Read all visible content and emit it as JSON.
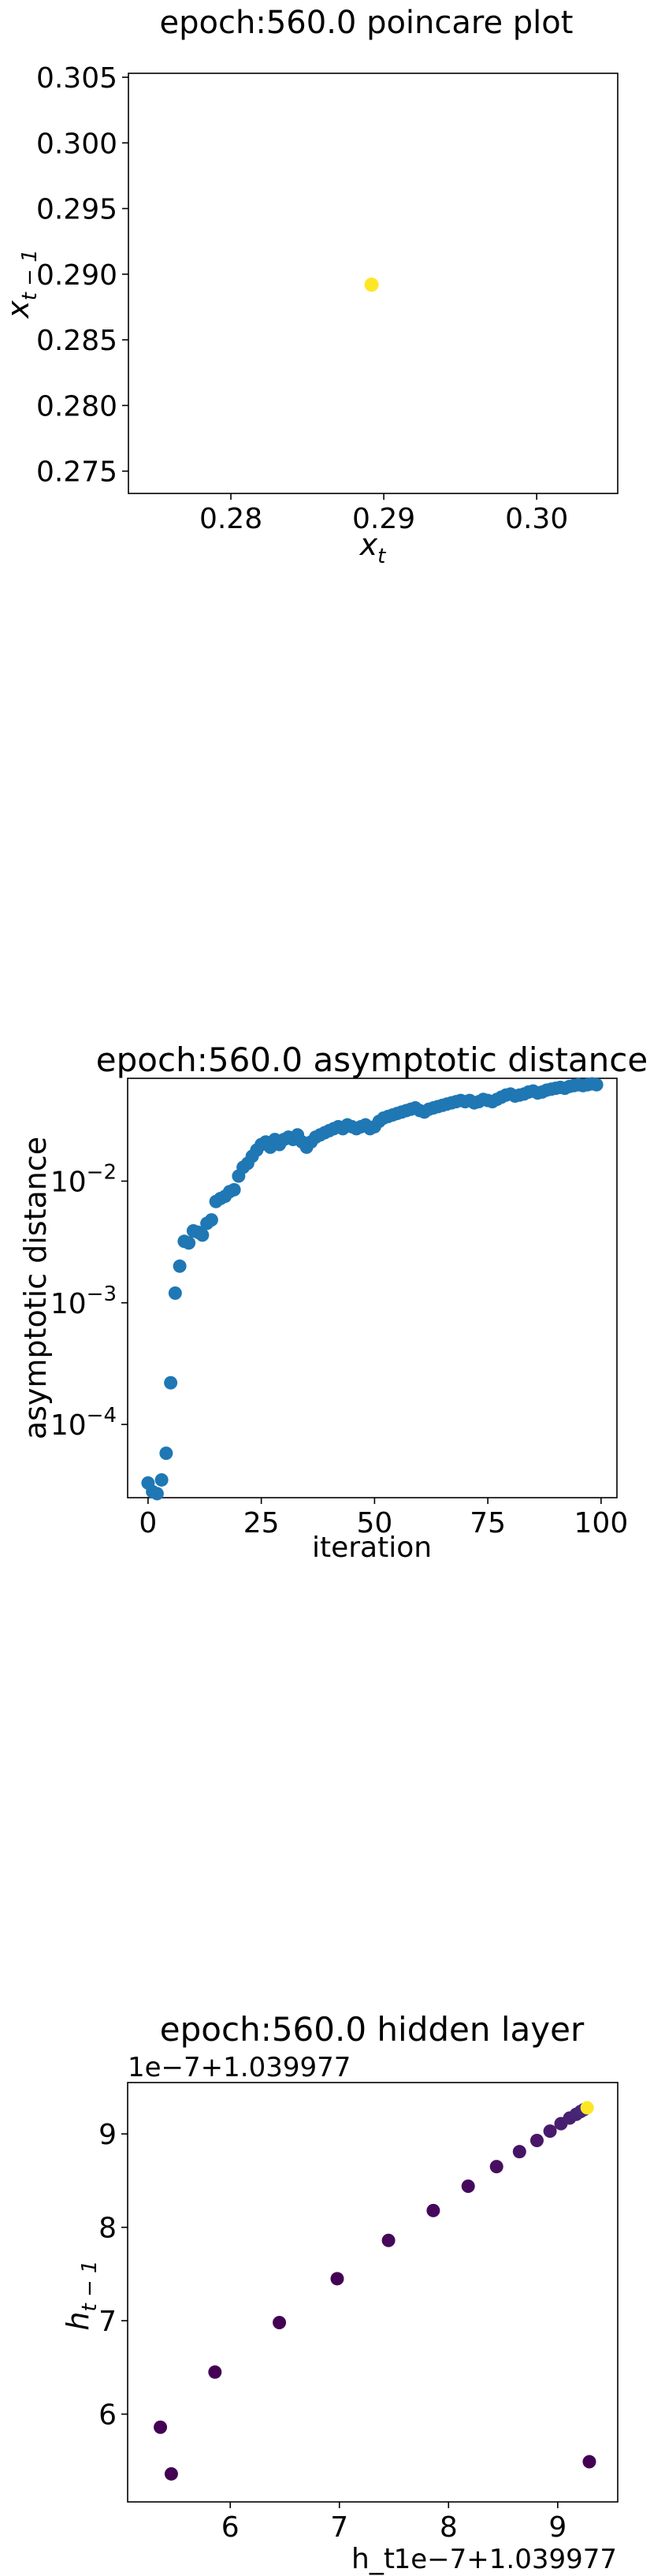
{
  "chart_data": [
    {
      "type": "scatter",
      "title": "epoch:560.0 poincare plot",
      "xlabel": "x_t",
      "ylabel": "x_{t-1}",
      "xlim": [
        0.2733,
        0.3053
      ],
      "ylim": [
        0.2733,
        0.3053
      ],
      "xticks": [
        0.28,
        0.29,
        0.3
      ],
      "xtick_labels": [
        "0.28",
        "0.29",
        "0.30"
      ],
      "yticks": [
        0.275,
        0.28,
        0.285,
        0.29,
        0.295,
        0.3,
        0.305
      ],
      "ytick_labels": [
        "0.275",
        "0.280",
        "0.285",
        "0.290",
        "0.295",
        "0.300",
        "0.305"
      ],
      "grid": false,
      "points": [
        {
          "x": 0.2892,
          "y": 0.2892,
          "color": "#fde725"
        }
      ]
    },
    {
      "type": "scatter",
      "title": "epoch:560.0 asymptotic distance",
      "xlabel": "iteration",
      "ylabel": "asymptotic distance",
      "xlim": [
        -4.5,
        103.5
      ],
      "ylim": [
        2.5e-05,
        0.07
      ],
      "yscale": "log",
      "xticks": [
        0,
        25,
        50,
        75,
        100
      ],
      "xtick_labels": [
        "0",
        "25",
        "50",
        "75",
        "100"
      ],
      "yticks": [
        0.0001,
        0.001,
        0.01
      ],
      "ytick_labels": [
        "10^-4",
        "10^-3",
        "10^-2"
      ],
      "grid": false,
      "color": "#1f77b4",
      "series": [
        {
          "x": [
            0,
            1,
            2,
            3,
            4,
            5,
            6,
            7,
            8,
            9,
            10,
            11,
            12,
            13,
            14,
            15,
            16,
            17,
            18,
            19,
            20,
            21,
            22,
            23,
            24,
            25,
            26,
            27,
            28,
            29,
            30,
            31,
            32,
            33,
            34,
            35,
            36,
            37,
            38,
            39,
            40,
            41,
            42,
            43,
            44,
            45,
            46,
            47,
            48,
            49,
            50,
            51,
            52,
            53,
            54,
            55,
            56,
            57,
            58,
            59,
            60,
            61,
            62,
            63,
            64,
            65,
            66,
            67,
            68,
            69,
            70,
            71,
            72,
            73,
            74,
            75,
            76,
            77,
            78,
            79,
            80,
            81,
            82,
            83,
            84,
            85,
            86,
            87,
            88,
            89,
            90,
            91,
            92,
            93,
            94,
            95,
            96,
            97,
            98,
            99
          ],
          "values": [
            3.3e-05,
            2.8e-05,
            2.7e-05,
            3.5e-05,
            5.8e-05,
            0.00022,
            0.0012,
            0.002,
            0.0032,
            0.0031,
            0.0039,
            0.0038,
            0.0036,
            0.0045,
            0.0048,
            0.0068,
            0.0072,
            0.0075,
            0.0082,
            0.0085,
            0.011,
            0.013,
            0.014,
            0.016,
            0.018,
            0.02,
            0.021,
            0.019,
            0.022,
            0.02,
            0.022,
            0.023,
            0.022,
            0.024,
            0.021,
            0.019,
            0.021,
            0.023,
            0.024,
            0.025,
            0.026,
            0.027,
            0.028,
            0.027,
            0.029,
            0.028,
            0.027,
            0.028,
            0.029,
            0.027,
            0.028,
            0.031,
            0.033,
            0.034,
            0.035,
            0.036,
            0.037,
            0.038,
            0.039,
            0.04,
            0.038,
            0.037,
            0.039,
            0.04,
            0.041,
            0.042,
            0.043,
            0.044,
            0.045,
            0.046,
            0.045,
            0.046,
            0.044,
            0.045,
            0.047,
            0.046,
            0.045,
            0.047,
            0.049,
            0.051,
            0.052,
            0.05,
            0.051,
            0.052,
            0.054,
            0.055,
            0.053,
            0.054,
            0.056,
            0.057,
            0.058,
            0.059,
            0.058,
            0.06,
            0.061,
            0.062,
            0.061,
            0.062,
            0.063,
            0.062
          ]
        }
      ]
    },
    {
      "type": "scatter",
      "title": "epoch:560.0 hidden layer",
      "xlabel": "h_t",
      "ylabel": "h_{t-1}",
      "x_offset_label": "1e−7+1.039977",
      "y_offset_label": "1e−7+1.039977",
      "xlim": [
        5.06,
        9.55
      ],
      "ylim": [
        5.06,
        9.55
      ],
      "xticks": [
        6,
        7,
        8,
        9
      ],
      "xtick_labels": [
        "6",
        "7",
        "8",
        "9"
      ],
      "yticks": [
        6,
        7,
        8,
        9
      ],
      "ytick_labels": [
        "6",
        "7",
        "8",
        "9"
      ],
      "grid": false,
      "points": [
        {
          "x": 5.36,
          "y": 5.86,
          "color": "#440154"
        },
        {
          "x": 5.46,
          "y": 5.36,
          "color": "#440154"
        },
        {
          "x": 5.86,
          "y": 6.45,
          "color": "#440154"
        },
        {
          "x": 6.45,
          "y": 6.98,
          "color": "#440154"
        },
        {
          "x": 6.98,
          "y": 7.45,
          "color": "#440154"
        },
        {
          "x": 7.45,
          "y": 7.86,
          "color": "#45085b"
        },
        {
          "x": 7.86,
          "y": 8.18,
          "color": "#46085c"
        },
        {
          "x": 8.18,
          "y": 8.44,
          "color": "#46085c"
        },
        {
          "x": 8.44,
          "y": 8.65,
          "color": "#47105f"
        },
        {
          "x": 8.65,
          "y": 8.81,
          "color": "#471365"
        },
        {
          "x": 8.81,
          "y": 8.93,
          "color": "#481769"
        },
        {
          "x": 8.93,
          "y": 9.03,
          "color": "#481a6c"
        },
        {
          "x": 9.03,
          "y": 9.11,
          "color": "#481d6f"
        },
        {
          "x": 9.11,
          "y": 9.17,
          "color": "#482071"
        },
        {
          "x": 9.17,
          "y": 9.21,
          "color": "#472374"
        },
        {
          "x": 9.21,
          "y": 9.24,
          "color": "#472676"
        },
        {
          "x": 9.24,
          "y": 9.26,
          "color": "#472878"
        },
        {
          "x": 9.27,
          "y": 9.28,
          "color": "#fde725"
        },
        {
          "x": 9.29,
          "y": 5.49,
          "color": "#440154"
        }
      ]
    }
  ]
}
